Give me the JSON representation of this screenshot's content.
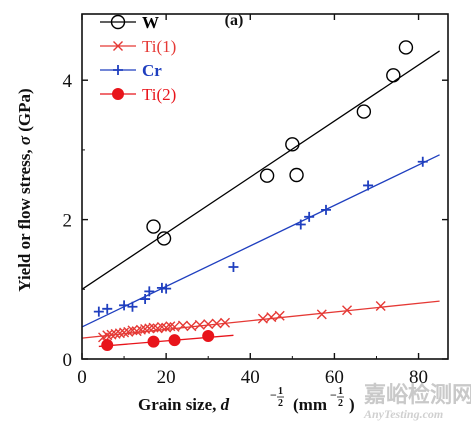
{
  "chart_data": {
    "type": "scatter",
    "panel_label": "(a)",
    "xlabel": "Grain size, d^-1/2 (mm^-1/2)",
    "xlabel_parts": {
      "prefix": "Grain size, ",
      "d": "d",
      "exp_num": "1",
      "exp_den": "2",
      "minus": "−",
      "unit_open": "(",
      "unit_mm": "mm",
      "unit_close": ")"
    },
    "ylabel": "Yield or flow stress, σ (GPa)",
    "ylabel_parts": {
      "prefix": "Yield or flow stress, ",
      "sigma": "σ",
      "suffix": " (GPa)"
    },
    "xlim": [
      0,
      87
    ],
    "ylim": [
      0,
      4.95
    ],
    "xticks": [
      0,
      20,
      40,
      60,
      80
    ],
    "yticks": [
      0,
      2,
      4
    ],
    "tick_labels_x": [
      "0",
      "20",
      "40",
      "60",
      "80"
    ],
    "tick_labels_y": [
      "0",
      "2",
      "4"
    ],
    "grid": false,
    "legend_position": "top-left",
    "series": [
      {
        "name": "W",
        "color": "#000000",
        "marker": "open-circle",
        "points": [
          [
            17,
            1.9
          ],
          [
            19.5,
            1.73
          ],
          [
            44,
            2.63
          ],
          [
            50,
            3.08
          ],
          [
            51,
            2.64
          ],
          [
            67,
            3.55
          ],
          [
            74,
            4.07
          ],
          [
            77,
            4.47
          ]
        ],
        "fit": [
          [
            0,
            1.0
          ],
          [
            85,
            4.42
          ]
        ]
      },
      {
        "name": "Ti(1)",
        "color": "#e53935",
        "marker": "cross",
        "points": [
          [
            5,
            0.31
          ],
          [
            6,
            0.34
          ],
          [
            7,
            0.35
          ],
          [
            8,
            0.36
          ],
          [
            9,
            0.37
          ],
          [
            10,
            0.38
          ],
          [
            11,
            0.39
          ],
          [
            12,
            0.41
          ],
          [
            13,
            0.4
          ],
          [
            14,
            0.42
          ],
          [
            15,
            0.43
          ],
          [
            16,
            0.44
          ],
          [
            17,
            0.45
          ],
          [
            18,
            0.44
          ],
          [
            19,
            0.46
          ],
          [
            20,
            0.45
          ],
          [
            21,
            0.47
          ],
          [
            22,
            0.46
          ],
          [
            24,
            0.48
          ],
          [
            26,
            0.47
          ],
          [
            28,
            0.49
          ],
          [
            30,
            0.5
          ],
          [
            32,
            0.51
          ],
          [
            34,
            0.52
          ],
          [
            43,
            0.58
          ],
          [
            45,
            0.6
          ],
          [
            47,
            0.62
          ],
          [
            57,
            0.64
          ],
          [
            63,
            0.7
          ],
          [
            71,
            0.76
          ]
        ],
        "fit": [
          [
            0,
            0.3
          ],
          [
            85,
            0.83
          ]
        ]
      },
      {
        "name": "Cr",
        "color": "#1f3fbf",
        "marker": "plus",
        "points": [
          [
            4,
            0.68
          ],
          [
            6,
            0.72
          ],
          [
            10,
            0.77
          ],
          [
            12,
            0.75
          ],
          [
            15,
            0.86
          ],
          [
            16,
            0.97
          ],
          [
            19,
            1.02
          ],
          [
            20,
            1.01
          ],
          [
            36,
            1.32
          ],
          [
            52,
            1.93
          ],
          [
            54,
            2.04
          ],
          [
            58,
            2.14
          ],
          [
            68,
            2.49
          ],
          [
            81,
            2.83
          ]
        ],
        "fit": [
          [
            0,
            0.46
          ],
          [
            85,
            2.93
          ]
        ]
      },
      {
        "name": "Ti(2)",
        "color": "#e8141b",
        "marker": "filled-circle",
        "points": [
          [
            6,
            0.2
          ],
          [
            17,
            0.25
          ],
          [
            22,
            0.27
          ],
          [
            30,
            0.33
          ]
        ],
        "fit": [
          [
            4,
            0.18
          ],
          [
            36,
            0.34
          ]
        ]
      }
    ]
  },
  "watermark": {
    "main": "嘉峪检测网",
    "sub": "AnyTesting.com"
  }
}
